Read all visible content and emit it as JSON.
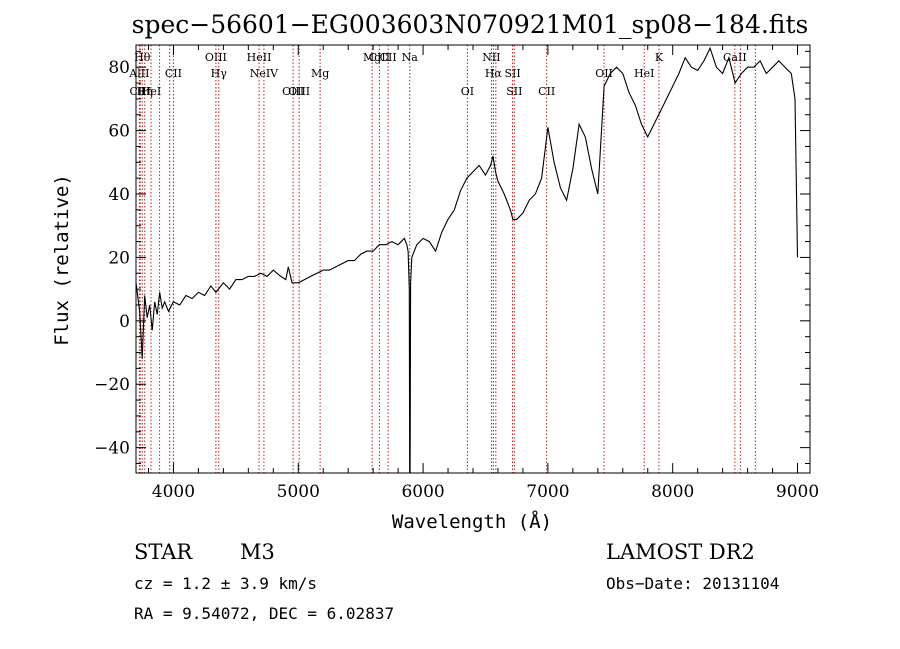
{
  "chart_data": {
    "type": "line",
    "title": "spec−56601−EG003603N070921M01_sp08−184.fits",
    "xlabel": "Wavelength (Å)",
    "ylabel": "Flux (relative)",
    "xlim": [
      3700,
      9100
    ],
    "ylim": [
      -48,
      87
    ],
    "x_ticks": [
      4000,
      5000,
      6000,
      7000,
      8000,
      9000
    ],
    "y_ticks": [
      -40,
      -20,
      0,
      20,
      40,
      60,
      80
    ],
    "grid": false,
    "line_color": "#000000",
    "marker_color": "#b22222",
    "series": [
      {
        "x": [
          3700,
          3730,
          3750,
          3770,
          3790,
          3810,
          3830,
          3850,
          3870,
          3890,
          3910,
          3930,
          3960,
          4000,
          4050,
          4100,
          4150,
          4200,
          4250,
          4300,
          4340,
          4400,
          4450,
          4500,
          4550,
          4600,
          4650,
          4700,
          4750,
          4800,
          4860,
          4900,
          4920,
          4950,
          5000,
          5050,
          5100,
          5150,
          5200,
          5250,
          5300,
          5350,
          5400,
          5450,
          5500,
          5550,
          5600,
          5650,
          5700,
          5750,
          5800,
          5850,
          5870,
          5880,
          5890,
          5893,
          5896,
          5900,
          5910,
          5950,
          6000,
          6050,
          6100,
          6150,
          6200,
          6250,
          6300,
          6350,
          6400,
          6450,
          6500,
          6540,
          6560,
          6580,
          6600,
          6650,
          6700,
          6720,
          6750,
          6800,
          6850,
          6900,
          6950,
          7000,
          7050,
          7100,
          7150,
          7200,
          7250,
          7300,
          7350,
          7400,
          7450,
          7500,
          7550,
          7600,
          7650,
          7700,
          7750,
          7800,
          7850,
          7900,
          7950,
          8000,
          8050,
          8100,
          8150,
          8200,
          8250,
          8300,
          8350,
          8400,
          8450,
          8500,
          8550,
          8600,
          8650,
          8700,
          8750,
          8800,
          8850,
          8900,
          8950,
          8980,
          9000
        ],
        "y": [
          12,
          3,
          -12,
          8,
          1,
          5,
          -3,
          6,
          2,
          9,
          4,
          6,
          3,
          6,
          5,
          8,
          7,
          9,
          8,
          11,
          9,
          12,
          10,
          13,
          13,
          14,
          14,
          15,
          14,
          16,
          14,
          13,
          17,
          12,
          12,
          13,
          14,
          15,
          16,
          16,
          17,
          18,
          19,
          19,
          21,
          22,
          22,
          24,
          24,
          25,
          24,
          26,
          24,
          22,
          10,
          -48,
          -48,
          12,
          20,
          24,
          26,
          25,
          22,
          28,
          32,
          35,
          41,
          45,
          47,
          49,
          46,
          49,
          52,
          47,
          44,
          40,
          35,
          32,
          32,
          34,
          38,
          40,
          45,
          61,
          50,
          42,
          38,
          48,
          62,
          58,
          48,
          40,
          74,
          78,
          80,
          78,
          72,
          68,
          62,
          58,
          62,
          66,
          70,
          74,
          78,
          83,
          80,
          79,
          82,
          86,
          80,
          78,
          83,
          75,
          78,
          80,
          80,
          82,
          78,
          80,
          82,
          80,
          78,
          70,
          20
        ]
      }
    ],
    "line_markers": [
      {
        "x": 3750,
        "label": "Hθ",
        "row": 1
      },
      {
        "x": 3727,
        "label": "AlII",
        "row": 2
      },
      {
        "x": 3734,
        "label": "CIII",
        "row": 3
      },
      {
        "x": 3770,
        "label": "Hη",
        "row": 3
      },
      {
        "x": 3820,
        "label": "HeI",
        "row": 3
      },
      {
        "x": 3889,
        "label": "",
        "row": 0
      },
      {
        "x": 3970,
        "label": "",
        "row": 0
      },
      {
        "x": 4000,
        "label": "CII",
        "row": 2
      },
      {
        "x": 4340,
        "label": "OIII",
        "row": 1
      },
      {
        "x": 4363,
        "label": "Hγ",
        "row": 2
      },
      {
        "x": 4686,
        "label": "HeII",
        "row": 1
      },
      {
        "x": 4725,
        "label": "NeIV",
        "row": 2
      },
      {
        "x": 4959,
        "label": "OIII",
        "row": 3
      },
      {
        "x": 5007,
        "label": "OIII",
        "row": 3
      },
      {
        "x": 5175,
        "label": "Mg",
        "row": 2
      },
      {
        "x": 5592,
        "label": "Mg",
        "row": 1
      },
      {
        "x": 5650,
        "label": "CIII",
        "row": 1
      },
      {
        "x": 5720,
        "label": "CII",
        "row": 1
      },
      {
        "x": 5893,
        "label": "Na",
        "row": 1
      },
      {
        "x": 6355,
        "label": "OI",
        "row": 3
      },
      {
        "x": 6548,
        "label": "NII",
        "row": 1
      },
      {
        "x": 6563,
        "label": "Hα",
        "row": 2
      },
      {
        "x": 6583,
        "label": "",
        "row": 0
      },
      {
        "x": 6717,
        "label": "SII",
        "row": 2
      },
      {
        "x": 6731,
        "label": "SII",
        "row": 3
      },
      {
        "x": 6990,
        "label": "CII",
        "row": 3
      },
      {
        "x": 7450,
        "label": "OII",
        "row": 2
      },
      {
        "x": 7772,
        "label": "HeI",
        "row": 2
      },
      {
        "x": 7890,
        "label": "K",
        "row": 1
      },
      {
        "x": 8498,
        "label": "CaII",
        "row": 1
      },
      {
        "x": 8542,
        "label": "",
        "row": 3
      },
      {
        "x": 8662,
        "label": "",
        "row": 3
      }
    ]
  },
  "info": {
    "object_class": "STAR",
    "subclass": "M3",
    "survey": "LAMOST DR2",
    "redshift": "cz = 1.2 ± 3.9 km/s",
    "obs_date": "Obs−Date: 20131104",
    "coords": "RA =   9.54072, DEC =   6.02837"
  }
}
